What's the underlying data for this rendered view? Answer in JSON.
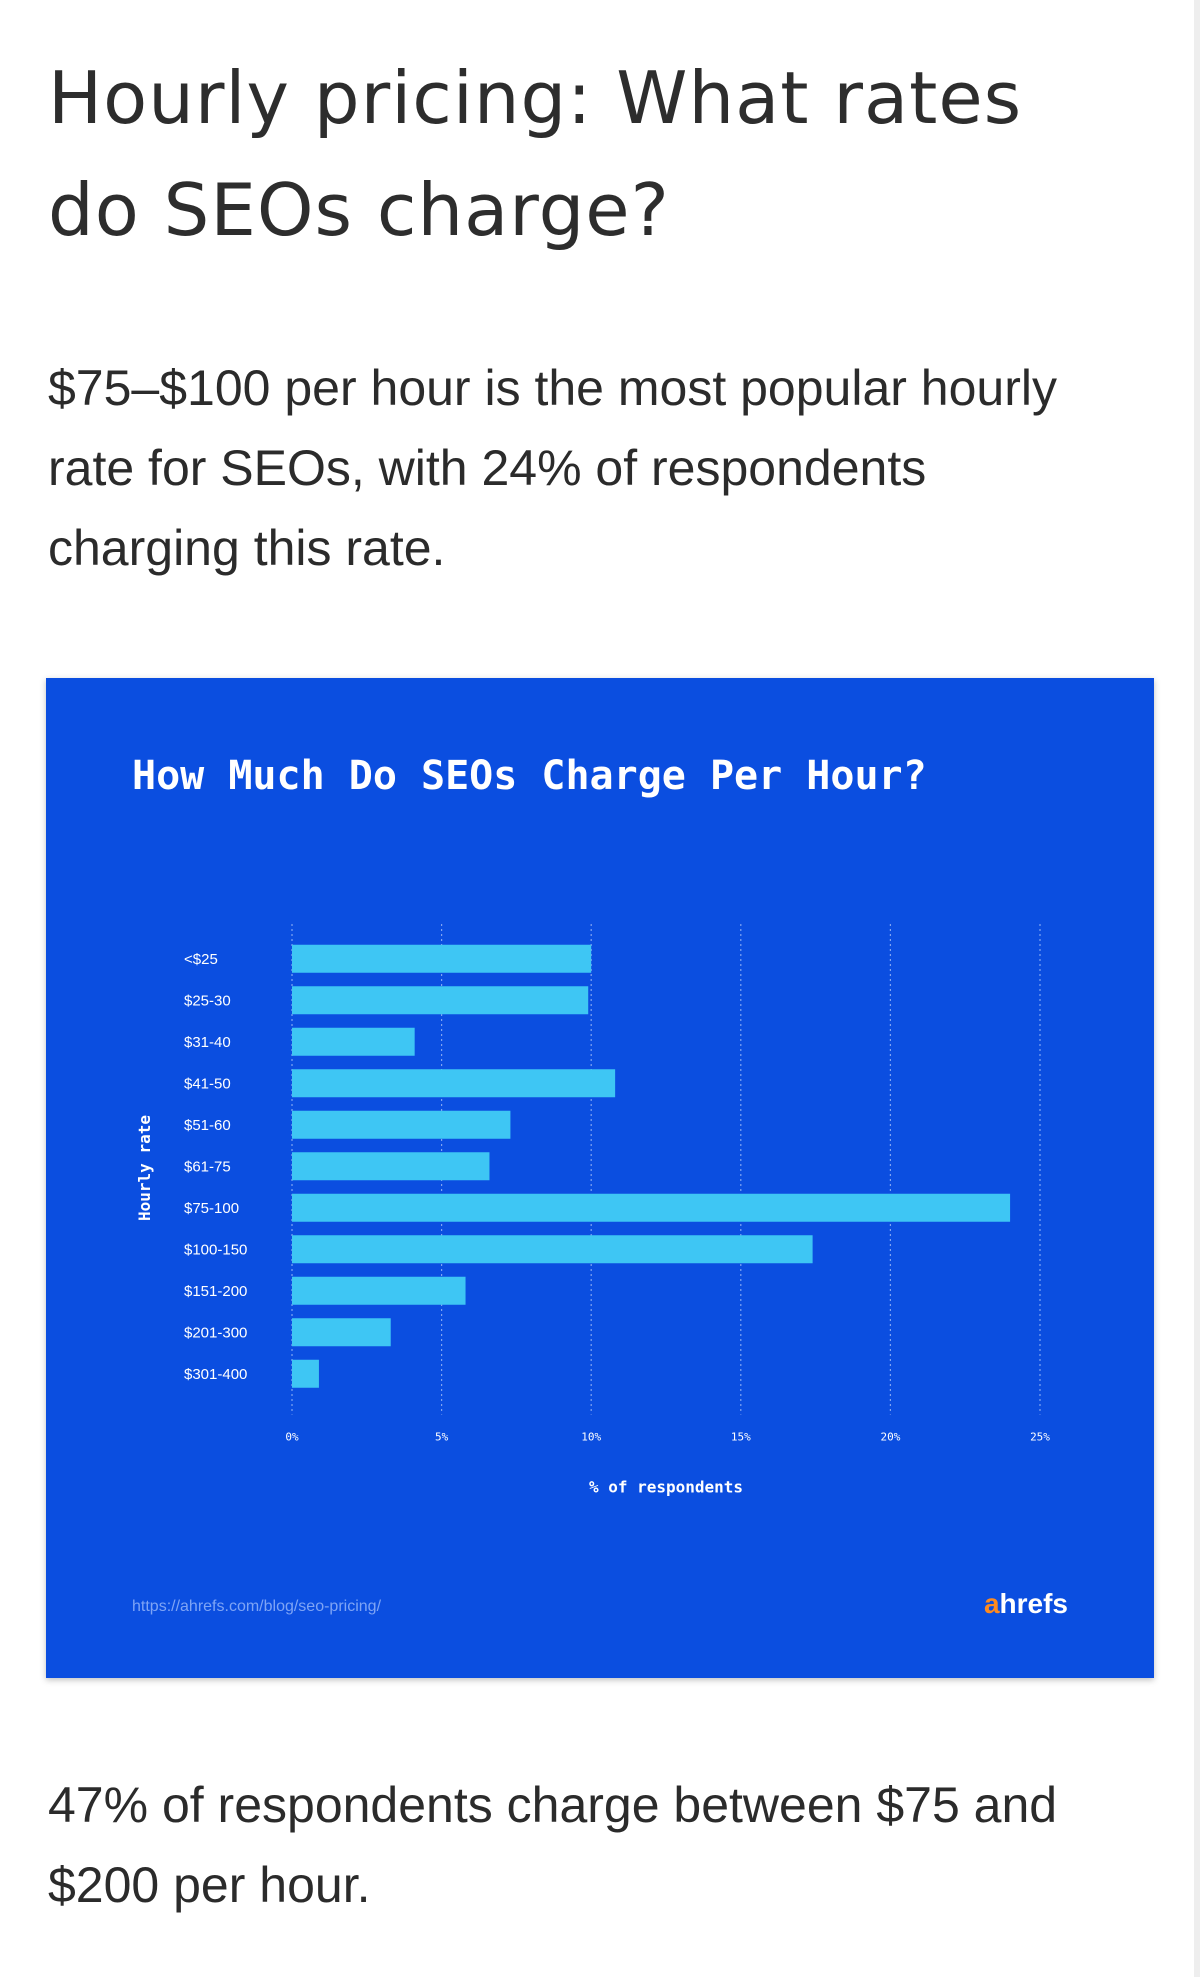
{
  "article": {
    "heading": "Hourly pricing: What rates do SEOs charge?",
    "intro": "$75–$100 per hour is the most popular hourly rate for SEOs, with 24% of respondents charging this rate.",
    "outro": "47% of respondents charge between $75 and $200 per hour."
  },
  "card": {
    "source_url": "https://ahrefs.com/blog/seo-pricing/",
    "logo_a": "a",
    "logo_rest": "hrefs",
    "background_color": "#0b4ee0",
    "bar_color": "#3ec6f4",
    "logo_accent_color": "#ff8a1f"
  },
  "chart_data": {
    "type": "bar",
    "orientation": "horizontal",
    "title": "How Much Do SEOs Charge Per Hour?",
    "xlabel": "% of respondents",
    "ylabel": "Hourly rate",
    "categories": [
      "<$25",
      "$25-30",
      "$31-40",
      "$41-50",
      "$51-60",
      "$61-75",
      "$75-100",
      "$100-150",
      "$151-200",
      "$201-300",
      "$301-400"
    ],
    "values": [
      10,
      9.9,
      4.1,
      10.8,
      7.3,
      6.6,
      24,
      17.4,
      5.8,
      3.3,
      0.9
    ],
    "xlim": [
      0,
      25
    ],
    "xticks": [
      0,
      5,
      10,
      15,
      20,
      25
    ],
    "xtick_labels": [
      "0%",
      "5%",
      "10%",
      "15%",
      "20%",
      "25%"
    ],
    "grid": "vertical dotted"
  }
}
